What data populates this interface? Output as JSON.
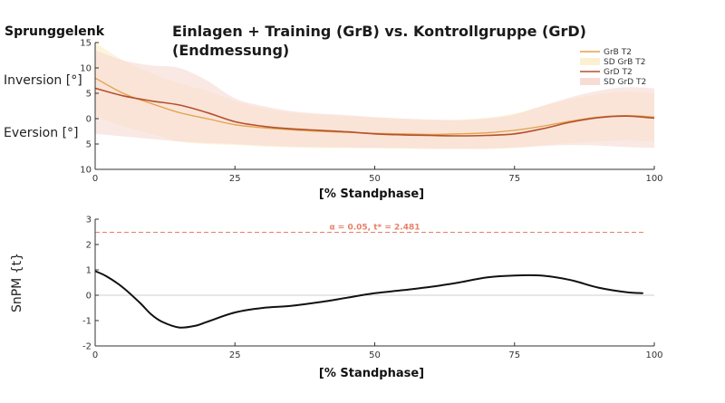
{
  "heading": "Sprunggelenk",
  "chart_data": [
    {
      "type": "line",
      "title": "Einlagen + Training (GrB) vs. Kontrollgruppe (GrD)",
      "subtitle": "(Endmessung)",
      "xlabel": "[% Standphase]",
      "ylabel_top": "Inversion [°]",
      "ylabel_bottom": "Eversion [°]",
      "xlim": [
        0,
        100
      ],
      "ylim": [
        -10,
        15
      ],
      "xticks": [
        0,
        25,
        50,
        75,
        100
      ],
      "yticks": [
        -10,
        -5,
        0,
        5,
        10,
        15
      ],
      "ytick_labels": [
        "10",
        "5",
        "0",
        "5",
        "10",
        "15"
      ],
      "legend_position": "top-right",
      "legend": [
        "GrB T2",
        "SD GrB T2",
        "GrD T2",
        "SD GrD T2"
      ],
      "colors": {
        "grb": "#e3a24b",
        "grb_sd": "#fbf1d2",
        "grd": "#b5502f",
        "grd_sd": "#f7dcd6"
      },
      "x": [
        0,
        5,
        10,
        15,
        20,
        25,
        30,
        35,
        40,
        45,
        50,
        55,
        60,
        65,
        70,
        75,
        80,
        85,
        90,
        95,
        100
      ],
      "series": [
        {
          "name": "GrB T2",
          "values": [
            8,
            5,
            3,
            1.2,
            0,
            -1.2,
            -1.8,
            -2.2,
            -2.5,
            -2.7,
            -2.9,
            -3.0,
            -3.1,
            -3.0,
            -2.8,
            -2.3,
            -1.5,
            -0.5,
            0.3,
            0.6,
            0.3
          ]
        },
        {
          "name": "GrD T2",
          "values": [
            6,
            4.5,
            3.5,
            2.7,
            1.2,
            -0.6,
            -1.5,
            -2.0,
            -2.3,
            -2.6,
            -3.0,
            -3.2,
            -3.3,
            -3.4,
            -3.3,
            -3.0,
            -2.0,
            -0.7,
            0.2,
            0.5,
            0.1
          ]
        }
      ],
      "sd_bands": [
        {
          "name": "SD GrB T2",
          "lower": [
            0.5,
            -1.5,
            -3,
            -4.5,
            -5,
            -5.2,
            -5.5,
            -5.7,
            -5.8,
            -5.8,
            -5.8,
            -5.9,
            -6.0,
            -6.0,
            -6.0,
            -5.8,
            -5.3,
            -4.8,
            -4.5,
            -4.3,
            -4.5
          ],
          "upper": [
            15,
            11.5,
            9,
            7,
            5.5,
            3.5,
            2,
            1.2,
            0.8,
            0.5,
            0.2,
            0,
            -0.2,
            -0.2,
            0.2,
            1,
            2.5,
            3.8,
            4.8,
            5.3,
            5
          ]
        },
        {
          "name": "SD GrD T2",
          "lower": [
            -3,
            -3.5,
            -4,
            -4.5,
            -4.8,
            -5,
            -5.3,
            -5.5,
            -5.6,
            -5.7,
            -5.8,
            -5.8,
            -5.9,
            -5.9,
            -5.9,
            -5.7,
            -5.4,
            -5.2,
            -5.3,
            -5.6,
            -5.8
          ],
          "upper": [
            13.5,
            11.5,
            10.5,
            10,
            7.5,
            4,
            2.5,
            1.5,
            1,
            0.7,
            0.3,
            0,
            -0.2,
            -0.3,
            0,
            0.8,
            2.5,
            4.2,
            5.5,
            6.2,
            6
          ]
        }
      ]
    },
    {
      "type": "line",
      "xlabel": "[% Standphase]",
      "ylabel": "SnPM {t}",
      "xlim": [
        0,
        100
      ],
      "ylim": [
        -2,
        3
      ],
      "xticks": [
        0,
        25,
        50,
        75,
        100
      ],
      "yticks": [
        -2,
        -1,
        0,
        1,
        2,
        3
      ],
      "threshold": {
        "value": 2.481,
        "label": "α = 0.05, t* = 2.481",
        "color": "#e8806a"
      },
      "zero_line": true,
      "colors": {
        "line": "#111111"
      },
      "x": [
        0,
        2,
        5,
        8,
        10,
        12,
        15,
        18,
        20,
        25,
        30,
        35,
        40,
        45,
        50,
        55,
        60,
        65,
        70,
        75,
        80,
        85,
        90,
        95,
        98
      ],
      "series": [
        {
          "values": [
            0.95,
            0.75,
            0.3,
            -0.3,
            -0.75,
            -1.05,
            -1.27,
            -1.2,
            -1.05,
            -0.68,
            -0.5,
            -0.42,
            -0.28,
            -0.1,
            0.08,
            0.2,
            0.33,
            0.5,
            0.7,
            0.78,
            0.77,
            0.6,
            0.3,
            0.12,
            0.08
          ]
        }
      ]
    }
  ]
}
